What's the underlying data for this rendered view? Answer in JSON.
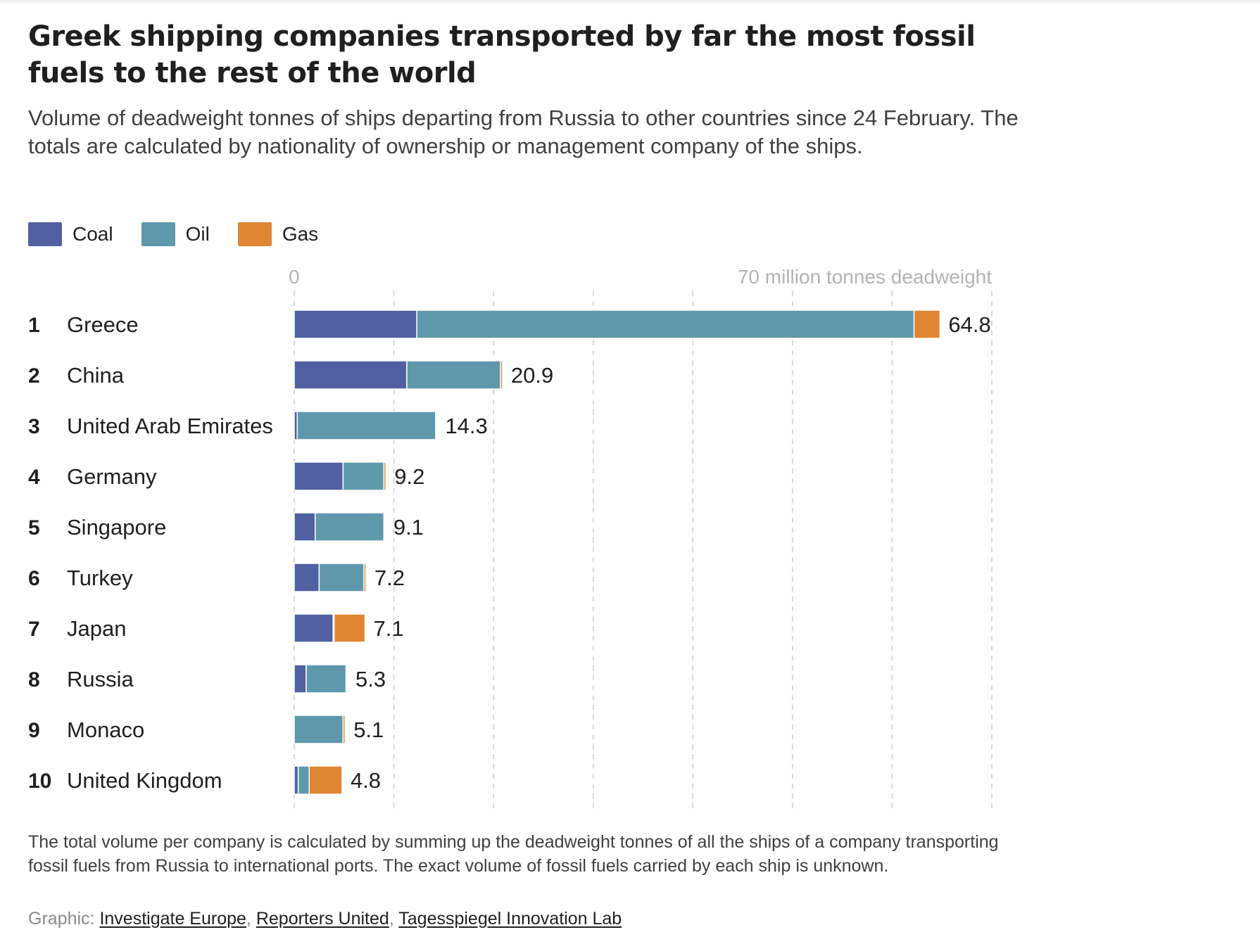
{
  "header": {
    "title": "Greek shipping companies transported by far the most fossil fuels to the rest of the world",
    "subtitle": "Volume of deadweight tonnes of ships departing from Russia to other countries since 24 February. The totals are calculated by nationality of ownership or management company of the ships."
  },
  "legend": [
    {
      "label": "Coal",
      "color": "#5060a0"
    },
    {
      "label": "Oil",
      "color": "#5f98ab"
    },
    {
      "label": "Gas",
      "color": "#e08532"
    }
  ],
  "footer": {
    "note": "The total volume per company is calculated by summing up the deadweight tonnes of all the ships of a company transporting fossil fuels from Russia to international ports. The exact volume of fossil fuels carried by each ship is unknown.",
    "credits_prefix": "Graphic:",
    "credits": [
      "Investigate Europe",
      "Reporters United",
      "Tagesspiegel Innovation Lab"
    ]
  },
  "chart_data": {
    "type": "bar",
    "orientation": "horizontal",
    "stacked": true,
    "title": "Greek shipping companies transported by far the most fossil fuels to the rest of the world",
    "xlabel": "million tonnes deadweight",
    "axis_labels": {
      "min": "0",
      "max": "70 million tonnes deadweight"
    },
    "xlim": [
      0,
      70
    ],
    "grid": true,
    "grid_step": 10,
    "legend_position": "top-left",
    "categories": [
      "Greece",
      "China",
      "United Arab Emirates",
      "Germany",
      "Singapore",
      "Turkey",
      "Japan",
      "Russia",
      "Monaco",
      "United Kingdom"
    ],
    "ranks": [
      "1",
      "2",
      "3",
      "4",
      "5",
      "6",
      "7",
      "8",
      "9",
      "10"
    ],
    "totals": [
      "64.8",
      "20.9",
      "14.3",
      "9.2",
      "9.1",
      "7.2",
      "7.1",
      "5.3",
      "5.1",
      "4.8"
    ],
    "series": [
      {
        "name": "Coal",
        "color": "#5060a0",
        "values": [
          12.3,
          11.3,
          0.3,
          4.9,
          2.1,
          2.5,
          3.9,
          1.2,
          0.0,
          0.4
        ]
      },
      {
        "name": "Oil",
        "color": "#5f98ab",
        "values": [
          49.9,
          9.4,
          13.9,
          4.1,
          6.9,
          4.5,
          0.1,
          4.0,
          4.9,
          1.1
        ]
      },
      {
        "name": "Gas",
        "color": "#e08532",
        "values": [
          2.6,
          0.2,
          0.1,
          0.2,
          0.1,
          0.2,
          3.1,
          0.1,
          0.2,
          3.3
        ]
      }
    ]
  }
}
